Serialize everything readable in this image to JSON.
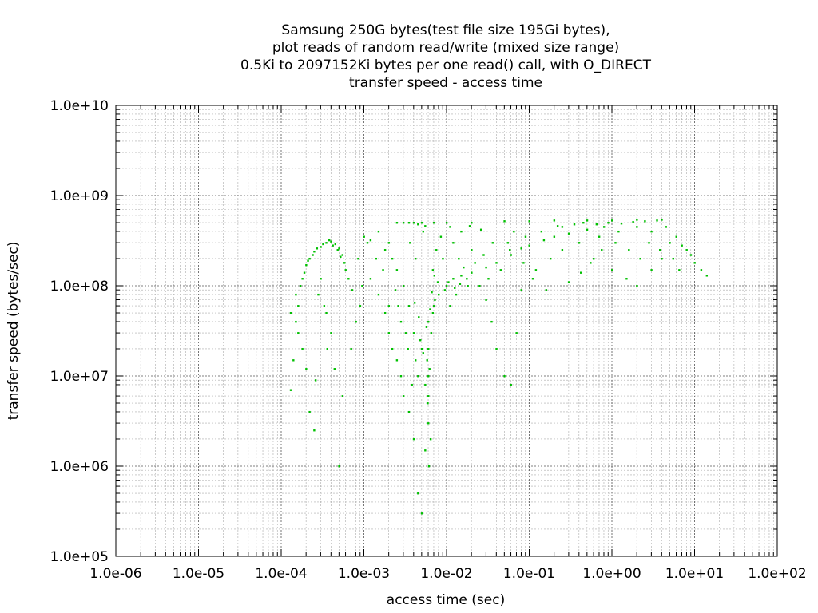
{
  "chart_data": {
    "type": "scatter",
    "title": [
      "Samsung 250G bytes(test file size 195Gi bytes),",
      "plot reads of random read/write (mixed size range)",
      "0.5Ki to 2097152Ki bytes per one read() call, with O_DIRECT",
      "transfer speed - access time"
    ],
    "xlabel": "access time (sec)",
    "ylabel": "transfer speed (bytes/sec)",
    "x_scale": "log",
    "y_scale": "log",
    "xlim": [
      1e-06,
      100
    ],
    "ylim": [
      100000.0,
      10000000000.0
    ],
    "x_ticks": [
      "1.0e-06",
      "1.0e-05",
      "1.0e-04",
      "1.0e-03",
      "1.0e-02",
      "1.0e-01",
      "1.0e+00",
      "1.0e+01",
      "1.0e+02"
    ],
    "y_ticks": [
      "1.0e+05",
      "1.0e+06",
      "1.0e+07",
      "1.0e+08",
      "1.0e+09",
      "1.0e+10"
    ],
    "grid": true,
    "point_color": "#00c000",
    "series": [
      {
        "values": [
          [
            0.00013,
            50000000.0
          ],
          [
            0.00015,
            80000000.0
          ],
          [
            0.00018,
            120000000.0
          ],
          [
            0.0002,
            170000000.0
          ],
          [
            0.00022,
            200000000.0
          ],
          [
            0.00025,
            240000000.0
          ],
          [
            0.0003,
            270000000.0
          ],
          [
            0.00035,
            300000000.0
          ],
          [
            0.0004,
            310000000.0
          ],
          [
            0.00045,
            290000000.0
          ],
          [
            0.0005,
            260000000.0
          ],
          [
            0.00055,
            220000000.0
          ],
          [
            0.0006,
            150000000.0
          ],
          [
            0.00016,
            30000000.0
          ],
          [
            0.00018,
            20000000.0
          ],
          [
            0.0002,
            12000000.0
          ],
          [
            0.00022,
            4000000.0
          ],
          [
            0.00025,
            2500000.0
          ],
          [
            0.00014,
            15000000.0
          ],
          [
            0.00013,
            7000000.0
          ],
          [
            0.0003,
            120000000.0
          ],
          [
            0.00028,
            80000000.0
          ],
          [
            0.00035,
            50000000.0
          ],
          [
            0.0004,
            30000000.0
          ],
          [
            0.0005,
            1000000.0
          ],
          [
            0.0007,
            20000000.0
          ],
          [
            0.0008,
            40000000.0
          ],
          [
            0.001,
            350000000.0
          ],
          [
            0.0012,
            320000000.0
          ],
          [
            0.0015,
            400000000.0
          ],
          [
            0.0018,
            250000000.0
          ],
          [
            0.002,
            300000000.0
          ],
          [
            0.0025,
            500000000.0
          ],
          [
            0.003,
            500000000.0
          ],
          [
            0.0035,
            500000000.0
          ],
          [
            0.004,
            500000000.0
          ],
          [
            0.005,
            500000000.0
          ],
          [
            0.007,
            500000000.0
          ],
          [
            0.01,
            500000000.0
          ],
          [
            0.02,
            500000000.0
          ],
          [
            0.05,
            520000000.0
          ],
          [
            0.1,
            520000000.0
          ],
          [
            0.2,
            530000000.0
          ],
          [
            0.5,
            530000000.0
          ],
          [
            1.0,
            530000000.0
          ],
          [
            2.0,
            540000000.0
          ],
          [
            4.0,
            540000000.0
          ],
          [
            6.0,
            350000000.0
          ],
          [
            8.0,
            250000000.0
          ],
          [
            10.0,
            180000000.0
          ],
          [
            12.0,
            150000000.0
          ],
          [
            14.0,
            130000000.0
          ],
          [
            0.0012,
            120000000.0
          ],
          [
            0.0015,
            80000000.0
          ],
          [
            0.0018,
            50000000.0
          ],
          [
            0.002,
            30000000.0
          ],
          [
            0.0022,
            20000000.0
          ],
          [
            0.0025,
            15000000.0
          ],
          [
            0.0028,
            10000000.0
          ],
          [
            0.003,
            6000000.0
          ],
          [
            0.0035,
            4000000.0
          ],
          [
            0.004,
            2000000.0
          ],
          [
            0.0045,
            500000.0
          ],
          [
            0.005,
            300000.0
          ],
          [
            0.0055,
            1500000.0
          ],
          [
            0.006,
            3000000.0
          ],
          [
            0.006,
            6000000.0
          ],
          [
            0.006,
            10000000.0
          ],
          [
            0.006,
            20000000.0
          ],
          [
            0.006,
            40000000.0
          ],
          [
            0.007,
            60000000.0
          ],
          [
            0.008,
            80000000.0
          ],
          [
            0.01,
            100000000.0
          ],
          [
            0.012,
            120000000.0
          ],
          [
            0.015,
            130000000.0
          ],
          [
            0.02,
            140000000.0
          ],
          [
            0.03,
            160000000.0
          ],
          [
            0.04,
            180000000.0
          ],
          [
            0.06,
            220000000.0
          ],
          [
            0.08,
            260000000.0
          ],
          [
            0.1,
            280000000.0
          ],
          [
            0.15,
            320000000.0
          ],
          [
            0.2,
            350000000.0
          ],
          [
            0.3,
            380000000.0
          ],
          [
            0.5,
            420000000.0
          ],
          [
            0.8,
            450000000.0
          ],
          [
            0.004,
            30000000.0
          ],
          [
            0.005,
            20000000.0
          ],
          [
            0.0045,
            10000000.0
          ],
          [
            0.0035,
            60000000.0
          ],
          [
            0.003,
            100000000.0
          ],
          [
            0.0025,
            150000000.0
          ],
          [
            0.0022,
            200000000.0
          ],
          [
            0.009,
            200000000.0
          ],
          [
            0.012,
            300000000.0
          ],
          [
            0.015,
            400000000.0
          ],
          [
            0.02,
            250000000.0
          ],
          [
            0.025,
            100000000.0
          ],
          [
            0.03,
            70000000.0
          ],
          [
            0.035,
            40000000.0
          ],
          [
            0.04,
            20000000.0
          ],
          [
            0.05,
            10000000.0
          ],
          [
            0.06,
            8000000.0
          ],
          [
            0.07,
            30000000.0
          ],
          [
            0.08,
            90000000.0
          ],
          [
            0.12,
            150000000.0
          ],
          [
            0.18,
            200000000.0
          ],
          [
            0.25,
            250000000.0
          ],
          [
            0.4,
            300000000.0
          ],
          [
            0.6,
            200000000.0
          ],
          [
            1.0,
            150000000.0
          ],
          [
            1.5,
            120000000.0
          ],
          [
            2.0,
            100000000.0
          ],
          [
            3.0,
            150000000.0
          ],
          [
            4.0,
            200000000.0
          ],
          [
            5.0,
            300000000.0
          ],
          [
            3.0,
            400000000.0
          ],
          [
            2.0,
            450000000.0
          ],
          [
            1.2,
            400000000.0
          ],
          [
            0.7,
            350000000.0
          ],
          [
            0.35,
            480000000.0
          ],
          [
            0.25,
            450000000.0
          ],
          [
            0.018,
            100000000.0
          ],
          [
            0.013,
            80000000.0
          ],
          [
            0.011,
            60000000.0
          ],
          [
            0.0065,
            30000000.0
          ],
          [
            0.0068,
            50000000.0
          ],
          [
            0.0072,
            70000000.0
          ],
          [
            0.0058,
            15000000.0
          ],
          [
            0.0055,
            8000000.0
          ],
          [
            0.0062,
            12000000.0
          ],
          [
            0.0052,
            18000000.0
          ],
          [
            0.0048,
            25000000.0
          ],
          [
            0.0042,
            15000000.0
          ],
          [
            0.0038,
            8000000.0
          ],
          [
            0.0032,
            30000000.0
          ],
          [
            0.0028,
            40000000.0
          ],
          [
            0.0026,
            60000000.0
          ],
          [
            0.0024,
            90000000.0
          ],
          [
            0.002,
            60000000.0
          ],
          [
            0.0017,
            150000000.0
          ],
          [
            0.0014,
            200000000.0
          ],
          [
            0.0011,
            300000000.0
          ],
          [
            0.00095,
            100000000.0
          ],
          [
            0.0009,
            60000000.0
          ],
          [
            0.00085,
            200000000.0
          ],
          [
            0.0075,
            250000000.0
          ],
          [
            0.0085,
            350000000.0
          ],
          [
            0.011,
            450000000.0
          ],
          [
            0.014,
            200000000.0
          ],
          [
            0.016,
            160000000.0
          ],
          [
            0.022,
            180000000.0
          ],
          [
            0.028,
            220000000.0
          ],
          [
            0.032,
            120000000.0
          ],
          [
            0.045,
            150000000.0
          ],
          [
            0.055,
            300000000.0
          ],
          [
            0.065,
            400000000.0
          ],
          [
            0.09,
            350000000.0
          ],
          [
            0.14,
            400000000.0
          ],
          [
            0.22,
            460000000.0
          ],
          [
            0.45,
            500000000.0
          ],
          [
            0.65,
            480000000.0
          ],
          [
            0.9,
            500000000.0
          ],
          [
            1.3,
            490000000.0
          ],
          [
            1.8,
            510000000.0
          ],
          [
            2.5,
            520000000.0
          ],
          [
            3.5,
            530000000.0
          ],
          [
            4.5,
            450000000.0
          ],
          [
            7.0,
            280000000.0
          ],
          [
            9.0,
            220000000.0
          ],
          [
            0.0042,
            200000000.0
          ],
          [
            0.0036,
            300000000.0
          ],
          [
            0.0052,
            400000000.0
          ],
          [
            0.0068,
            150000000.0
          ],
          [
            0.0078,
            110000000.0
          ],
          [
            0.0095,
            90000000.0
          ],
          [
            0.0105,
            110000000.0
          ],
          [
            0.0125,
            95000000.0
          ],
          [
            0.0145,
            105000000.0
          ],
          [
            0.0175,
            120000000.0
          ],
          [
            0.0064,
            2000000.0
          ],
          [
            0.0061,
            1000000.0
          ],
          [
            0.0059,
            5000000.0
          ],
          [
            0.0057,
            35000000.0
          ],
          [
            0.0063,
            55000000.0
          ],
          [
            0.0066,
            85000000.0
          ],
          [
            0.0071,
            130000000.0
          ],
          [
            0.0046,
            45000000.0
          ],
          [
            0.0041,
            65000000.0
          ],
          [
            0.0034,
            20000000.0
          ],
          [
            0.00042,
            280000000.0
          ],
          [
            0.00038,
            320000000.0
          ],
          [
            0.00032,
            290000000.0
          ],
          [
            0.00027,
            260000000.0
          ],
          [
            0.00024,
            220000000.0
          ],
          [
            0.00021,
            190000000.0
          ],
          [
            0.00019,
            140000000.0
          ],
          [
            0.00017,
            100000000.0
          ],
          [
            0.00016,
            60000000.0
          ],
          [
            0.00015,
            40000000.0
          ],
          [
            0.00048,
            250000000.0
          ],
          [
            0.00052,
            210000000.0
          ],
          [
            0.00058,
            180000000.0
          ],
          [
            0.00065,
            120000000.0
          ],
          [
            0.00072,
            90000000.0
          ],
          [
            0.00033,
            60000000.0
          ],
          [
            0.00036,
            20000000.0
          ],
          [
            0.00044,
            12000000.0
          ],
          [
            0.00055,
            6000000.0
          ],
          [
            0.00026,
            9000000.0
          ],
          [
            1.1,
            300000000.0
          ],
          [
            1.6,
            250000000.0
          ],
          [
            2.2,
            200000000.0
          ],
          [
            2.8,
            300000000.0
          ],
          [
            3.8,
            250000000.0
          ],
          [
            5.5,
            200000000.0
          ],
          [
            6.5,
            150000000.0
          ],
          [
            0.75,
            250000000.0
          ],
          [
            0.55,
            180000000.0
          ],
          [
            0.42,
            140000000.0
          ],
          [
            0.3,
            110000000.0
          ],
          [
            0.16,
            90000000.0
          ],
          [
            0.11,
            120000000.0
          ],
          [
            0.085,
            180000000.0
          ],
          [
            0.058,
            250000000.0
          ],
          [
            0.036,
            300000000.0
          ],
          [
            0.026,
            420000000.0
          ],
          [
            0.019,
            460000000.0
          ],
          [
            0.0045,
            480000000.0
          ],
          [
            0.0055,
            460000000.0
          ]
        ]
      }
    ]
  }
}
